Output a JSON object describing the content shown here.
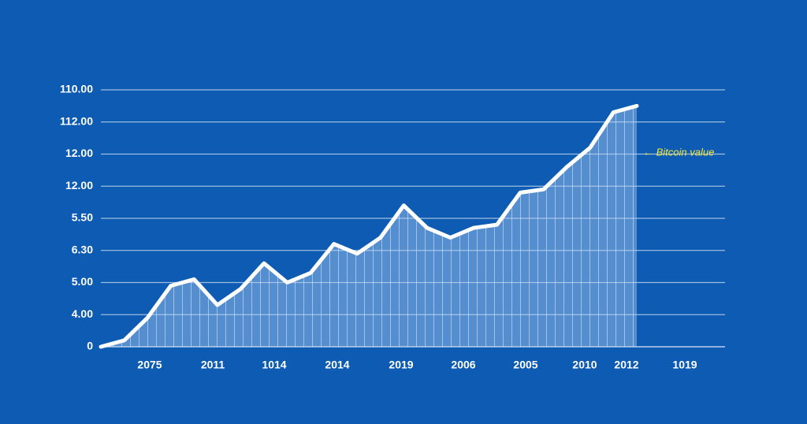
{
  "chart_data": {
    "type": "line",
    "y_labels": [
      "0",
      "4.00",
      "5.00",
      "6.30",
      "5.50",
      "12.00",
      "12.00",
      "112.00",
      "110.00"
    ],
    "xtick_labels": [
      "2075",
      "2011",
      "1014",
      "2014",
      "2019",
      "2006",
      "2005",
      "2010",
      "2012",
      "1019"
    ],
    "values": [
      0,
      0.2,
      0.9,
      1.9,
      2.1,
      1.3,
      1.8,
      2.6,
      2.0,
      2.3,
      3.2,
      2.9,
      3.4,
      4.4,
      3.7,
      3.4,
      3.7,
      3.8,
      4.8,
      4.9,
      5.6,
      6.2,
      7.3,
      7.5
    ],
    "annotation": "← Bitcoin value",
    "color": "#ffffff",
    "grid": true
  }
}
